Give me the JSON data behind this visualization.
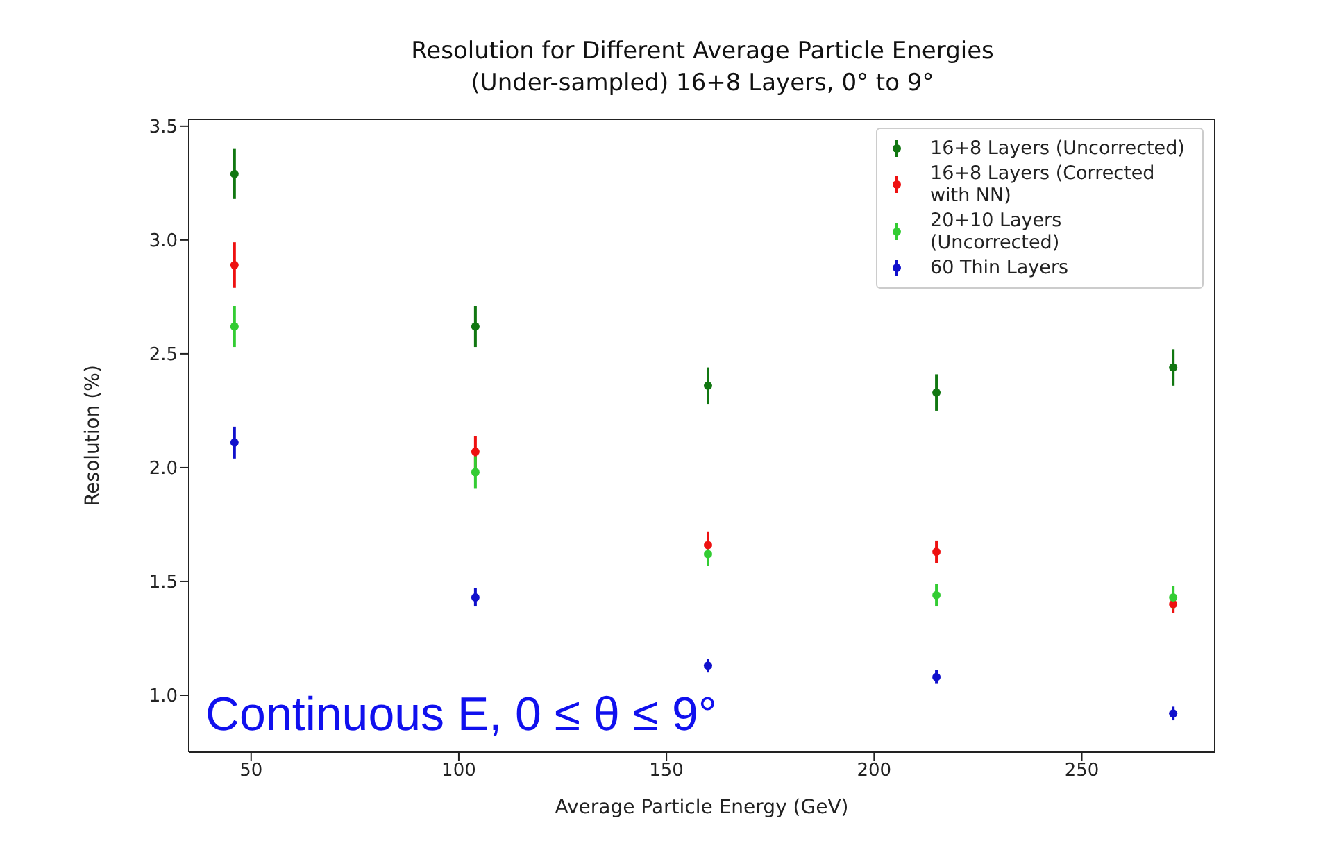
{
  "chart_data": {
    "type": "scatter",
    "title": "Resolution for Different Average Particle Energies",
    "subtitle": "(Under-sampled) 16+8 Layers, 0° to 9°",
    "xlabel": "Average Particle Energy (GeV)",
    "ylabel": "Resolution (%)",
    "x": [
      46,
      104,
      160,
      215,
      272
    ],
    "series": [
      {
        "name": "16+8 Layers (Uncorrected)",
        "color": "#117711",
        "values": [
          3.29,
          2.62,
          2.36,
          2.33,
          2.44
        ],
        "errors": [
          0.11,
          0.09,
          0.08,
          0.08,
          0.08
        ]
      },
      {
        "name": "16+8 Layers (Corrected with NN)",
        "color": "#ee1111",
        "values": [
          2.89,
          2.07,
          1.66,
          1.63,
          1.4
        ],
        "errors": [
          0.1,
          0.07,
          0.06,
          0.05,
          0.04
        ]
      },
      {
        "name": "20+10 Layers (Uncorrected)",
        "color": "#33cc33",
        "values": [
          2.62,
          1.98,
          1.62,
          1.44,
          1.43
        ],
        "errors": [
          0.09,
          0.07,
          0.05,
          0.05,
          0.05
        ]
      },
      {
        "name": "60 Thin Layers",
        "color": "#1010cc",
        "values": [
          2.11,
          1.43,
          1.13,
          1.08,
          0.92
        ],
        "errors": [
          0.07,
          0.04,
          0.03,
          0.03,
          0.03
        ]
      }
    ],
    "xlim": [
      35,
      282
    ],
    "ylim": [
      0.75,
      3.53
    ],
    "xticks": [
      50,
      100,
      150,
      200,
      250
    ],
    "yticks": [
      {
        "value": 1,
        "label": "1.0"
      },
      {
        "value": 1.5,
        "label": "1.5"
      },
      {
        "value": 2,
        "label": "2.0"
      },
      {
        "value": 2.5,
        "label": "2.5"
      },
      {
        "value": 3,
        "label": "3.0"
      },
      {
        "value": 3.5,
        "label": "3.5"
      }
    ],
    "grid": false,
    "legend": "top right",
    "marker": "circle",
    "annotations": [
      "Continuous E, 0 ≤ θ ≤ 9°"
    ]
  }
}
